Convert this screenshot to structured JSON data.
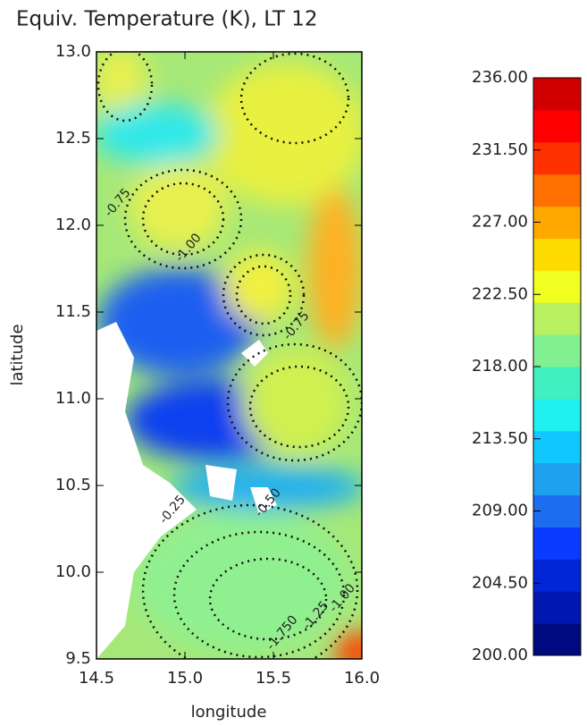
{
  "chart_data": {
    "type": "contour-map",
    "title": "Equiv. Temperature (K), LT 12",
    "xlabel": "longitude",
    "ylabel": "latitude",
    "xlim": [
      14.5,
      16.0
    ],
    "ylim": [
      9.5,
      13.0
    ],
    "xticks": [
      {
        "value": 14.5,
        "label": "14.5"
      },
      {
        "value": 15.0,
        "label": "15.0"
      },
      {
        "value": 15.5,
        "label": "15.5"
      },
      {
        "value": 16.0,
        "label": "16.0"
      }
    ],
    "yticks": [
      {
        "value": 9.5,
        "label": "9.5"
      },
      {
        "value": 10.0,
        "label": "10.0"
      },
      {
        "value": 10.5,
        "label": "10.5"
      },
      {
        "value": 11.0,
        "label": "11.0"
      },
      {
        "value": 11.5,
        "label": "11.5"
      },
      {
        "value": 12.0,
        "label": "12.0"
      },
      {
        "value": 12.5,
        "label": "12.5"
      },
      {
        "value": 13.0,
        "label": "13.0"
      }
    ],
    "colorbar": {
      "lim": [
        200,
        236
      ],
      "ticks": [
        {
          "value": 200,
          "label": "200.00"
        },
        {
          "value": 204.5,
          "label": "204.50"
        },
        {
          "value": 209,
          "label": "209.00"
        },
        {
          "value": 213.5,
          "label": "213.50"
        },
        {
          "value": 218,
          "label": "218.00"
        },
        {
          "value": 222.5,
          "label": "222.50"
        },
        {
          "value": 227,
          "label": "227.00"
        },
        {
          "value": 231.5,
          "label": "231.50"
        },
        {
          "value": 236,
          "label": "236.00"
        }
      ],
      "colors": [
        "#000a80",
        "#0018b0",
        "#0026d8",
        "#0a3cff",
        "#1e6cf0",
        "#20a0f0",
        "#10c8ff",
        "#20f0f0",
        "#40f0c0",
        "#80f090",
        "#b8f060",
        "#f0ff20",
        "#ffdc00",
        "#ffa800",
        "#ff7000",
        "#ff3000",
        "#ff0000",
        "#d00000"
      ]
    },
    "annotations": [
      {
        "text": "-0.75",
        "x": 14.62,
        "y": 12.13
      },
      {
        "text": "-1.00",
        "x": 15.02,
        "y": 11.87
      },
      {
        "text": "-0.75",
        "x": 15.63,
        "y": 11.42
      },
      {
        "text": "-0.25",
        "x": 14.93,
        "y": 10.36
      },
      {
        "text": "-0.50",
        "x": 15.47,
        "y": 10.4
      },
      {
        "text": "-1.750",
        "x": 15.55,
        "y": 9.65
      },
      {
        "text": "-1.25",
        "x": 15.74,
        "y": 9.75
      },
      {
        "text": "-1.00",
        "x": 15.89,
        "y": 9.85
      }
    ]
  }
}
